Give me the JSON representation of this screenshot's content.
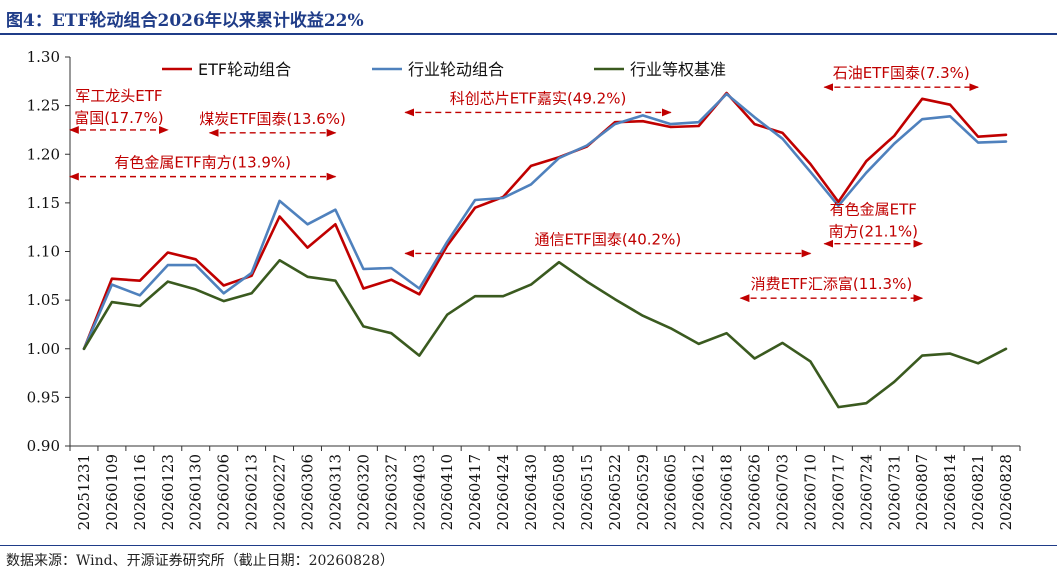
{
  "figure": {
    "title": "图4：ETF轮动组合2026年以来累计收益22%",
    "source": "数据来源：Wind、开源证券研究所（截止日期：20260828）"
  },
  "colors": {
    "etf": "#c00000",
    "industry": "#4f81bd",
    "equal": "#3a5a1f",
    "annotation": "#c00000",
    "theme": "#1f3c88"
  },
  "chart_data": {
    "type": "line",
    "x": [
      "20251231",
      "20260109",
      "20260116",
      "20260123",
      "20260130",
      "20260206",
      "20260213",
      "20260227",
      "20260306",
      "20260313",
      "20260320",
      "20260327",
      "20260403",
      "20260410",
      "20260417",
      "20260424",
      "20260430",
      "20260508",
      "20260515",
      "20260522",
      "20260529",
      "20260605",
      "20260612",
      "20260618",
      "20260626",
      "20260703",
      "20260710",
      "20260717",
      "20260724",
      "20260731",
      "20260807",
      "20260814",
      "20260821",
      "20260828"
    ],
    "ylim": [
      0.9,
      1.3
    ],
    "yticks": [
      "0.90",
      "0.95",
      "1.00",
      "1.05",
      "1.10",
      "1.15",
      "1.20",
      "1.25",
      "1.30"
    ],
    "grid": false,
    "legend_position": "top",
    "series": [
      {
        "name": "ETF轮动组合",
        "color": "#c00000",
        "values": [
          1.0,
          1.072,
          1.07,
          1.099,
          1.092,
          1.065,
          1.075,
          1.136,
          1.104,
          1.128,
          1.062,
          1.071,
          1.056,
          1.106,
          1.145,
          1.156,
          1.188,
          1.197,
          1.208,
          1.233,
          1.234,
          1.228,
          1.229,
          1.263,
          1.231,
          1.222,
          1.19,
          1.151,
          1.193,
          1.219,
          1.257,
          1.251,
          1.218,
          1.22
        ]
      },
      {
        "name": "行业轮动组合",
        "color": "#4f81bd",
        "values": [
          1.0,
          1.066,
          1.055,
          1.086,
          1.086,
          1.057,
          1.078,
          1.152,
          1.128,
          1.143,
          1.082,
          1.083,
          1.062,
          1.11,
          1.153,
          1.155,
          1.169,
          1.196,
          1.209,
          1.231,
          1.24,
          1.231,
          1.233,
          1.262,
          1.238,
          1.216,
          1.182,
          1.147,
          1.181,
          1.211,
          1.236,
          1.239,
          1.212,
          1.213
        ]
      },
      {
        "name": "行业等权基准",
        "color": "#3a5a1f",
        "values": [
          1.0,
          1.048,
          1.044,
          1.069,
          1.061,
          1.049,
          1.057,
          1.091,
          1.074,
          1.07,
          1.023,
          1.016,
          0.993,
          1.035,
          1.054,
          1.054,
          1.066,
          1.089,
          1.069,
          1.051,
          1.034,
          1.021,
          1.005,
          1.016,
          0.99,
          1.006,
          0.987,
          0.94,
          0.944,
          0.966,
          0.993,
          0.995,
          0.985,
          1.0
        ]
      }
    ],
    "annotations": [
      {
        "lines": [
          "军工龙头ETF",
          "富国(17.7%)"
        ],
        "from": "20251231",
        "to": "20260123",
        "level": 1.225
      },
      {
        "lines": [
          "煤炭ETF国泰(13.6%)"
        ],
        "from": "20260206",
        "to": "20260313",
        "level": 1.222
      },
      {
        "lines": [
          "有色金属ETF南方(13.9%)"
        ],
        "from": "20251231",
        "to": "20260313",
        "level": 1.177
      },
      {
        "lines": [
          "科创芯片ETF嘉实(49.2%)"
        ],
        "from": "20260403",
        "to": "20260605",
        "level": 1.243
      },
      {
        "lines": [
          "石油ETF国泰(7.3%)"
        ],
        "from": "20260717",
        "to": "20260821",
        "level": 1.269
      },
      {
        "lines": [
          "通信ETF国泰(40.2%)"
        ],
        "from": "20260403",
        "to": "20260710",
        "level": 1.098
      },
      {
        "lines": [
          "有色金属ETF",
          "南方(21.1%)"
        ],
        "from": "20260717",
        "to": "20260807",
        "level": 1.108
      },
      {
        "lines": [
          "消费ETF汇添富(11.3%)"
        ],
        "from": "20260626",
        "to": "20260807",
        "level": 1.052
      }
    ]
  }
}
